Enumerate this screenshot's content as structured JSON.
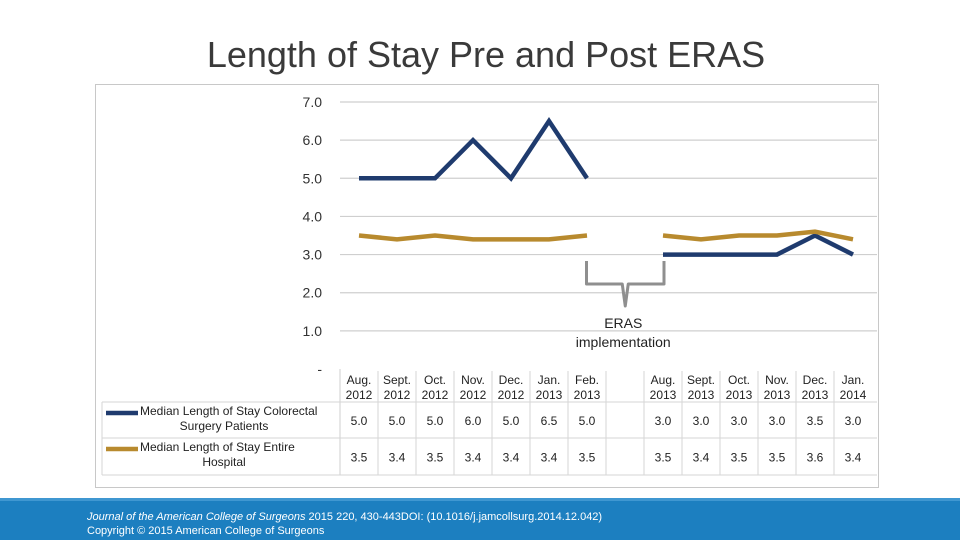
{
  "slide": {
    "title": "Length of Stay Pre and Post ERAS",
    "citation_journal": "Journal of the American College of Surgeons",
    "citation_rest": " 2015 220, 430-443DOI: (10.1016/j.jamcollsurg.2014.12.042)",
    "copyright": "Copyright © 2015 American College of Surgeons"
  },
  "chart_data": {
    "type": "line",
    "title": "",
    "xlabel": "",
    "ylabel": "",
    "ylim": [
      0,
      7
    ],
    "yticks": [
      {
        "value": 0,
        "label": "-"
      },
      {
        "value": 1,
        "label": "1.0"
      },
      {
        "value": 2,
        "label": "2.0"
      },
      {
        "value": 3,
        "label": "3.0"
      },
      {
        "value": 4,
        "label": "4.0"
      },
      {
        "value": 5,
        "label": "5.0"
      },
      {
        "value": 6,
        "label": "6.0"
      },
      {
        "value": 7,
        "label": "7.0"
      }
    ],
    "grid": true,
    "categories": [
      [
        "Aug.",
        "2012"
      ],
      [
        "Sept.",
        "2012"
      ],
      [
        "Oct.",
        "2012"
      ],
      [
        "Nov.",
        "2012"
      ],
      [
        "Dec.",
        "2012"
      ],
      [
        "Jan.",
        "2013"
      ],
      [
        "Feb.",
        "2013"
      ],
      [
        "",
        ""
      ],
      [
        "Aug.",
        "2013"
      ],
      [
        "Sept.",
        "2013"
      ],
      [
        "Oct.",
        "2013"
      ],
      [
        "Nov.",
        "2013"
      ],
      [
        "Dec.",
        "2013"
      ],
      [
        "Jan.",
        "2014"
      ]
    ],
    "series": [
      {
        "name": [
          "Median Length of Stay Colorectal",
          "Surgery Patients"
        ],
        "color": "#1f3b6e",
        "values": [
          5.0,
          5.0,
          5.0,
          6.0,
          5.0,
          6.5,
          5.0,
          null,
          3.0,
          3.0,
          3.0,
          3.0,
          3.5,
          3.0
        ],
        "labels": [
          "5.0",
          "5.0",
          "5.0",
          "6.0",
          "5.0",
          "6.5",
          "5.0",
          "",
          "3.0",
          "3.0",
          "3.0",
          "3.0",
          "3.5",
          "3.0"
        ]
      },
      {
        "name": [
          "Median Length of Stay Entire",
          "Hospital"
        ],
        "color": "#b88a2e",
        "values": [
          3.5,
          3.4,
          3.5,
          3.4,
          3.4,
          3.4,
          3.5,
          null,
          3.5,
          3.4,
          3.5,
          3.5,
          3.6,
          3.4
        ],
        "labels": [
          "3.5",
          "3.4",
          "3.5",
          "3.4",
          "3.4",
          "3.4",
          "3.5",
          "",
          "3.5",
          "3.4",
          "3.5",
          "3.5",
          "3.6",
          "3.4"
        ]
      }
    ],
    "annotation": [
      "ERAS",
      "implementation"
    ],
    "legend": "table-left"
  }
}
